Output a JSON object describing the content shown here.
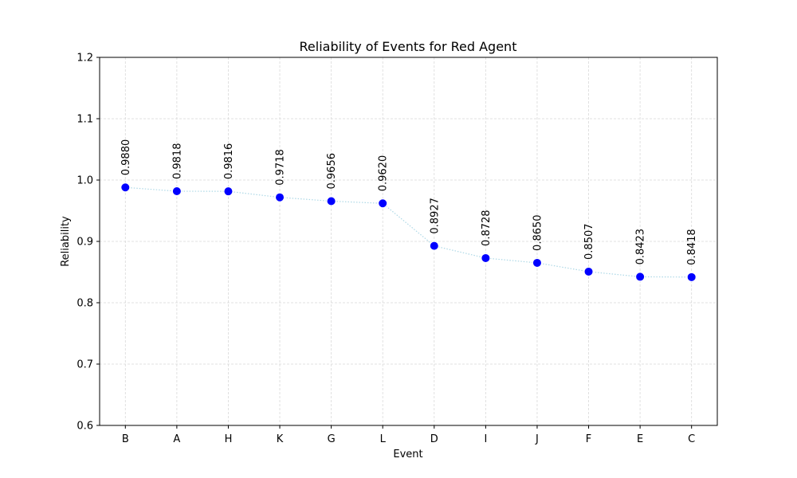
{
  "chart_data": {
    "type": "line",
    "title": "Reliability of Events for Red Agent",
    "xlabel": "Event",
    "ylabel": "Reliability",
    "categories": [
      "B",
      "A",
      "H",
      "K",
      "G",
      "L",
      "D",
      "I",
      "J",
      "F",
      "E",
      "C"
    ],
    "values": [
      0.988,
      0.9818,
      0.9816,
      0.9718,
      0.9656,
      0.962,
      0.8927,
      0.8728,
      0.865,
      0.8507,
      0.8423,
      0.8418
    ],
    "value_labels": [
      "0.9880",
      "0.9818",
      "0.9816",
      "0.9718",
      "0.9656",
      "0.9620",
      "0.8927",
      "0.8728",
      "0.8650",
      "0.8507",
      "0.8423",
      "0.8418"
    ],
    "ylim": [
      0.6,
      1.2
    ],
    "yticks": [
      "0.6",
      "0.7",
      "0.8",
      "0.9",
      "1.0",
      "1.1",
      "1.2"
    ],
    "grid": true,
    "marker_color": "#0000ff",
    "line_color": "#add8e6",
    "grid_color": "#d9d9d9"
  }
}
